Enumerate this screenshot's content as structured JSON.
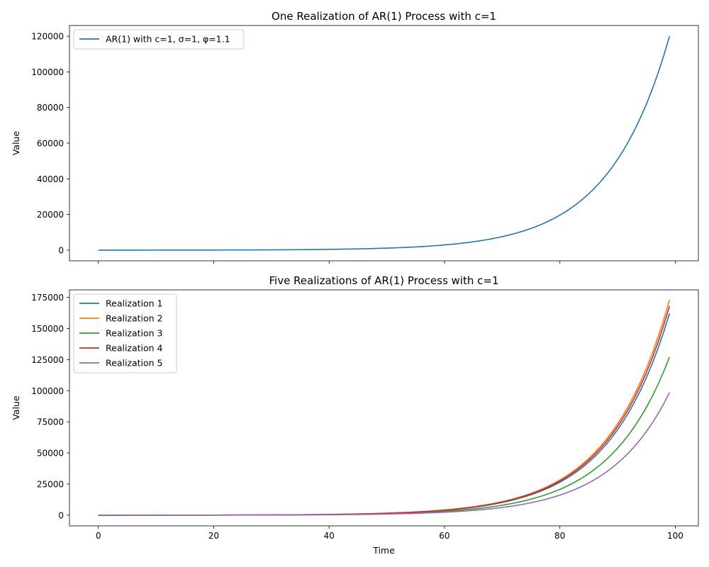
{
  "chart_data": [
    {
      "type": "line",
      "title": "One Realization of AR(1) Process with c=1",
      "xlabel": "",
      "ylabel": "Value",
      "xlim": [
        -5,
        104
      ],
      "ylim": [
        -6000,
        126000
      ],
      "xticks": [
        0,
        20,
        40,
        60,
        80,
        100
      ],
      "xtick_labels": [],
      "yticks": [
        0,
        20000,
        40000,
        60000,
        80000,
        100000,
        120000
      ],
      "ytick_labels": [
        "0",
        "20000",
        "40000",
        "60000",
        "80000",
        "100000",
        "120000"
      ],
      "legend_position": "top-left",
      "grid": false,
      "generator": {
        "c": 1,
        "phi": 1.1,
        "t_start": 0,
        "t_end": 99
      },
      "series": [
        {
          "name": "AR(1) with c=1, σ=1, φ=1.1",
          "color": "#1f77b4",
          "final_value": 120000
        }
      ]
    },
    {
      "type": "line",
      "title": "Five Realizations of AR(1) Process with c=1",
      "xlabel": "Time",
      "ylabel": "Value",
      "xlim": [
        -5,
        104
      ],
      "ylim": [
        -8600,
        181000
      ],
      "xticks": [
        0,
        20,
        40,
        60,
        80,
        100
      ],
      "xtick_labels": [
        "0",
        "20",
        "40",
        "60",
        "80",
        "100"
      ],
      "yticks": [
        0,
        25000,
        50000,
        75000,
        100000,
        125000,
        150000,
        175000
      ],
      "ytick_labels": [
        "0",
        "25000",
        "50000",
        "75000",
        "100000",
        "125000",
        "150000",
        "175000"
      ],
      "legend_position": "top-left",
      "grid": false,
      "generator": {
        "c": 1,
        "phi": 1.1,
        "t_start": 0,
        "t_end": 99
      },
      "series": [
        {
          "name": "Realization 1",
          "color": "#1f77b4",
          "final_value": 162000
        },
        {
          "name": "Realization 2",
          "color": "#ff7f0e",
          "final_value": 173000
        },
        {
          "name": "Realization 3",
          "color": "#2ca02c",
          "final_value": 127000
        },
        {
          "name": "Realization 4",
          "color": "#d62728",
          "final_value": 168000
        },
        {
          "name": "Realization 5",
          "color": "#9467bd",
          "final_value": 98500
        }
      ]
    }
  ]
}
